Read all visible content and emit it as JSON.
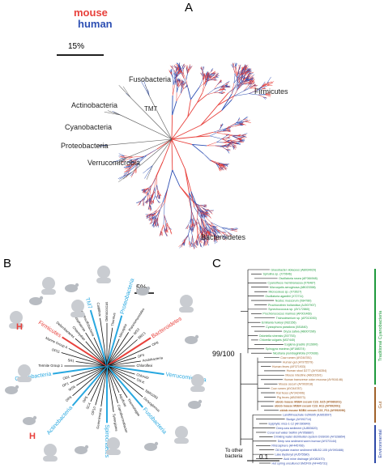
{
  "colors": {
    "mouse": "#e8413c",
    "human": "#2d4fb3",
    "cyan": "#28a8e0",
    "green": "#1f9a3d",
    "brown": "#a0612a",
    "blue": "#2e49a8",
    "black": "#111111"
  },
  "panelA": {
    "label": "A",
    "legend": {
      "mouse": "mouse",
      "human": "human"
    },
    "scale": "15%",
    "phyla": {
      "fusobacteria": "Fusobacteria",
      "firmicutes": "Firmicutes",
      "actinobacteria": "Actinobacteria",
      "tm7": "TM7",
      "cyanobacteria": "Cyanobacteria",
      "proteobacteria": "Proteobacteria",
      "verrucomicrobia": "Verrucomicrobia",
      "bacteroidetes": "Bacteroidetes"
    }
  },
  "panelB": {
    "label": "B",
    "scale": "5%",
    "highlighted": [
      {
        "text": "Proteobacteria",
        "color": "cyan"
      },
      {
        "text": "Bacteroidetes",
        "color": "mouse"
      },
      {
        "text": "Verrucomicrobia",
        "color": "cyan"
      },
      {
        "text": "Fusobacteria",
        "color": "cyan"
      },
      {
        "text": "Spirochaetes",
        "color": "cyan"
      },
      {
        "text": "Actinobacteria",
        "color": "cyan"
      },
      {
        "text": "Cyanobacteria",
        "color": "cyan"
      },
      {
        "text": "Firmicutes",
        "color": "mouse"
      },
      {
        "text": "TM7",
        "color": "cyan"
      }
    ],
    "markers": {
      "h1": "H",
      "h2": "H"
    },
    "other": [
      "Deinococcus",
      "Thermus",
      "Nitrospira",
      "Planctomycetales",
      "WS3",
      "BRC1",
      "OP8",
      "OP3",
      "Acidobacteria",
      "Chloroflexi",
      "Chlorobi",
      "OS-K",
      "SBR1093",
      "Dictyoglomus",
      "Thermotogae",
      "Aquificae",
      "Coprothermobacter",
      "Synergistes",
      "Gemmimonas",
      "OP10",
      "SC4",
      "OP5",
      "OP9",
      "WS6",
      "OP1",
      "OD1",
      "Termite Group 1",
      "SR1",
      "OP11",
      "Marine Group A",
      "Deferribacteres",
      "Chlamydiae",
      "Lentisphaerae",
      "Thermodesulfobacteria",
      "Caldithrix"
    ]
  },
  "panelC": {
    "label": "C",
    "support": "99/100",
    "root_label_1": "To other",
    "root_label_2": "bacteria",
    "scale": "0.1",
    "groups": {
      "traditional": "Traditional Cyanobacteria",
      "gut": "Gut",
      "environmental": "Environmental"
    },
    "taxa": [
      {
        "name": "Gloeobacter violaceus (AB034029)",
        "group": "traditional"
      },
      {
        "name": "Spirulina sp. (X70646)",
        "group": "traditional"
      },
      {
        "name": "Oscillatoria rosea (AF084948)",
        "group": "traditional"
      },
      {
        "name": "Cyanothece membranacea (X76487)",
        "group": "traditional"
      },
      {
        "name": "Microcystis aeruginosa (AB023358)",
        "group": "traditional"
      },
      {
        "name": "Microcoleus sp. (X73527)",
        "group": "traditional"
      },
      {
        "name": "Oscillatoria agardhii (X72711)",
        "group": "traditional"
      },
      {
        "name": "Nostoc muscorum (X84780)",
        "group": "traditional"
      },
      {
        "name": "Prochlorothrix hollandica (AJ007907)",
        "group": "traditional"
      },
      {
        "name": "Synechococcus sp. (AY172860)",
        "group": "traditional"
      },
      {
        "name": "Prochlorococcus marinus (AF001466)",
        "group": "traditional"
      },
      {
        "name": "Trichodesmium sp. (AF013030)",
        "group": "traditional"
      },
      {
        "name": "Emiliania huxleyi (X82156)",
        "group": "traditional"
      },
      {
        "name": "Cyanophora paradoxa (X81840)",
        "group": "traditional"
      },
      {
        "name": "Oryza sativa (AB007396)",
        "group": "traditional"
      },
      {
        "name": "Odontella sinensis (Z67753)",
        "group": "traditional"
      },
      {
        "name": "Chlorella vulgaris (M37440)",
        "group": "traditional"
      },
      {
        "name": "Euglena gracilis (X12890)",
        "group": "traditional"
      },
      {
        "name": "Spirogyra maxima (AF188374)",
        "group": "traditional"
      },
      {
        "name": "Nicotiana plumbaginifolia (X70938)",
        "group": "traditional"
      },
      {
        "name": "Cow rumen (AY244781)",
        "group": "gut"
      },
      {
        "name": "Human gut (AY975579)",
        "group": "gut"
      },
      {
        "name": "Human feces (AF371933)",
        "group": "gut"
      },
      {
        "name": "Human stool D277 (AY916354)",
        "group": "gut"
      },
      {
        "name": "Mouse intestine (AB021691)",
        "group": "gut"
      },
      {
        "name": "Human transverse colon mucosa (AY916148)",
        "group": "gut"
      },
      {
        "name": "Mouse cecum (AY993018)",
        "group": "gut"
      },
      {
        "name": "Cow rumen (AY244787)",
        "group": "gut"
      },
      {
        "name": "Rat feces (AY342496)",
        "group": "gut"
      },
      {
        "name": "Pig feces (AB206573)",
        "group": "gut"
      },
      {
        "name": "ob/ob mouse M3B4 cecum C23_G15 (AY989201)",
        "group": "gut"
      },
      {
        "name": "ob/ob mouse M3B4 cecum C23_H11 (AY992091)",
        "group": "gut"
      },
      {
        "name": "ob/ob mouse M3B4 cecum C23_F11 (AY992096)",
        "group": "gut"
      },
      {
        "name": "Landfill leachate GZKB95 (AJ853597)",
        "group": "environmental"
      },
      {
        "name": "Sludge (AY092714)",
        "group": "environmental"
      },
      {
        "name": "Epiphytic mics-1-12 (AF280849)",
        "group": "environmental"
      },
      {
        "name": "Deep-sea sediment (AJ853620)",
        "group": "environmental"
      },
      {
        "name": "Coral reef water biofilm (AY958887)",
        "group": "environmental"
      },
      {
        "name": "Drinking water distribution system DSS030 (AY328854)",
        "group": "environmental"
      },
      {
        "name": "Deep sea sediment worm burrow (AY373144)",
        "group": "environmental"
      },
      {
        "name": "Rhizosphere (AF445766)",
        "group": "environmental"
      },
      {
        "name": "Oil hydrate marine sediment MB-B2-105 (AY093488)",
        "group": "environmental"
      },
      {
        "name": "Lake Bysteryd (AJ575580)",
        "group": "environmental"
      },
      {
        "name": "Acid mine drainage (AY082470)",
        "group": "environmental"
      },
      {
        "name": "Hot spring uncultured SM2F09 (AF445731)",
        "group": "environmental"
      }
    ]
  }
}
